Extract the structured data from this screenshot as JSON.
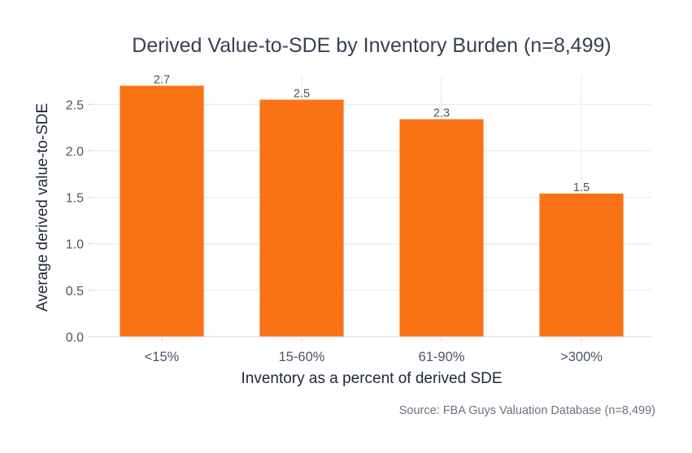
{
  "chart_data": {
    "type": "bar",
    "title": "Derived Value-to-SDE by Inventory Burden (n=8,499)",
    "xlabel": "Inventory as a percent of derived SDE",
    "ylabel": "Average derived value-to-SDE",
    "categories": [
      "<15%",
      "15-60%",
      "61-90%",
      ">300%"
    ],
    "values": [
      2.7,
      2.55,
      2.34,
      1.54
    ],
    "data_labels": [
      "2.7",
      "2.5",
      "2.3",
      "1.5"
    ],
    "ylim": [
      0,
      2.8
    ],
    "yticks": [
      0.0,
      0.5,
      1.0,
      1.5,
      2.0,
      2.5
    ],
    "ytick_labels": [
      "0.0",
      "0.5",
      "1.0",
      "1.5",
      "2.0",
      "2.5"
    ],
    "grid": true,
    "bar_color": "#f97316",
    "source": "Source: FBA Guys Valuation Database (n=8,499)"
  }
}
